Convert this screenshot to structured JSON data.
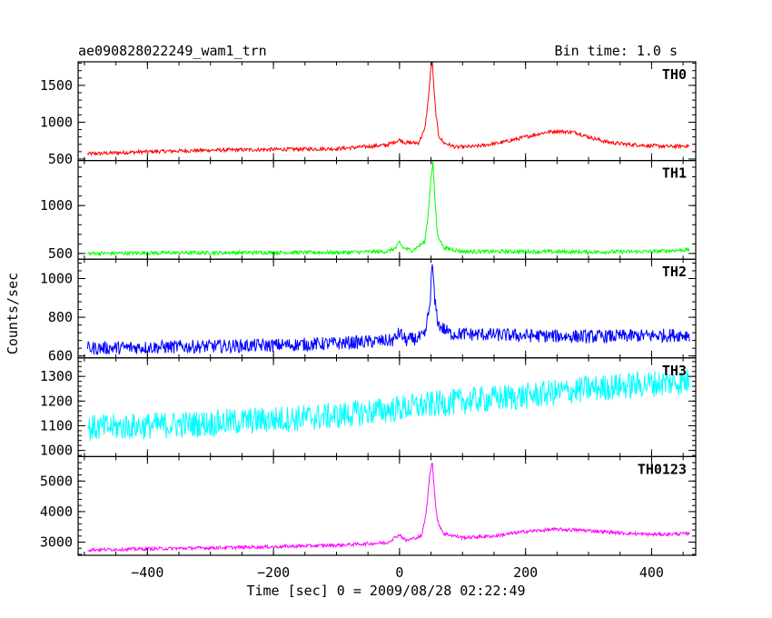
{
  "chart_data": {
    "type": "line",
    "title": "ae090828022249_wam1_trn",
    "subtitle": "Bin time: 1.0 s",
    "xlabel": "Time [sec] 0 = 2009/08/28 02:22:49",
    "ylabel": "Counts/sec",
    "xlim": [
      -510,
      470
    ],
    "x_ticks": [
      -400,
      -200,
      0,
      200,
      400
    ],
    "grid": false,
    "panels": [
      {
        "name": "TH0",
        "color": "#ff0000",
        "ylim": [
          480,
          1820
        ],
        "y_ticks": [
          500,
          1000,
          1500
        ],
        "x": [
          -495,
          -400,
          -300,
          -200,
          -100,
          -50,
          -20,
          0,
          10,
          30,
          40,
          45,
          50,
          52,
          55,
          58,
          62,
          70,
          90,
          120,
          160,
          200,
          230,
          250,
          280,
          300,
          330,
          360,
          400,
          430,
          460
        ],
        "values": [
          570,
          600,
          620,
          630,
          640,
          670,
          690,
          760,
          720,
          720,
          900,
          1250,
          1750,
          1820,
          1400,
          1100,
          820,
          720,
          660,
          670,
          720,
          800,
          860,
          880,
          860,
          800,
          730,
          700,
          680,
          670,
          680
        ],
        "noise": 25
      },
      {
        "name": "TH1",
        "color": "#00ff00",
        "ylim": [
          440,
          1470
        ],
        "y_ticks": [
          500,
          1000
        ],
        "x": [
          -495,
          -400,
          -200,
          -100,
          -20,
          -5,
          0,
          5,
          20,
          40,
          45,
          50,
          53,
          56,
          60,
          70,
          100,
          200,
          300,
          400,
          460
        ],
        "values": [
          500,
          505,
          510,
          510,
          520,
          560,
          620,
          560,
          530,
          620,
          880,
          1300,
          1450,
          1100,
          700,
          560,
          520,
          520,
          515,
          520,
          540
        ],
        "noise": 20
      },
      {
        "name": "TH2",
        "color": "#0000ff",
        "ylim": [
          590,
          1100
        ],
        "y_ticks": [
          600,
          800,
          1000
        ],
        "x": [
          -495,
          -400,
          -200,
          -100,
          -10,
          0,
          10,
          40,
          48,
          52,
          56,
          62,
          80,
          200,
          300,
          400,
          460
        ],
        "values": [
          640,
          645,
          655,
          665,
          680,
          720,
          680,
          700,
          860,
          1080,
          880,
          760,
          715,
          705,
          700,
          705,
          710
        ],
        "noise": 35
      },
      {
        "name": "TH3",
        "color": "#00ffff",
        "ylim": [
          975,
          1375
        ],
        "y_ticks": [
          1000,
          1100,
          1200,
          1300
        ],
        "x": [
          -495,
          -300,
          -100,
          0,
          100,
          200,
          300,
          400,
          460
        ],
        "values": [
          1090,
          1110,
          1140,
          1170,
          1200,
          1220,
          1250,
          1270,
          1280
        ],
        "noise": 55
      },
      {
        "name": "TH0123",
        "color": "#ff00ff",
        "ylim": [
          2570,
          5800
        ],
        "y_ticks": [
          3000,
          4000,
          5000
        ],
        "x": [
          -495,
          -400,
          -200,
          -100,
          -20,
          0,
          10,
          35,
          42,
          48,
          52,
          56,
          60,
          70,
          100,
          150,
          200,
          250,
          300,
          350,
          400,
          460
        ],
        "values": [
          2750,
          2780,
          2850,
          2900,
          2980,
          3250,
          3050,
          3200,
          3900,
          5200,
          5650,
          4500,
          3700,
          3280,
          3150,
          3200,
          3350,
          3420,
          3380,
          3300,
          3250,
          3280
        ],
        "noise": 55
      }
    ]
  }
}
